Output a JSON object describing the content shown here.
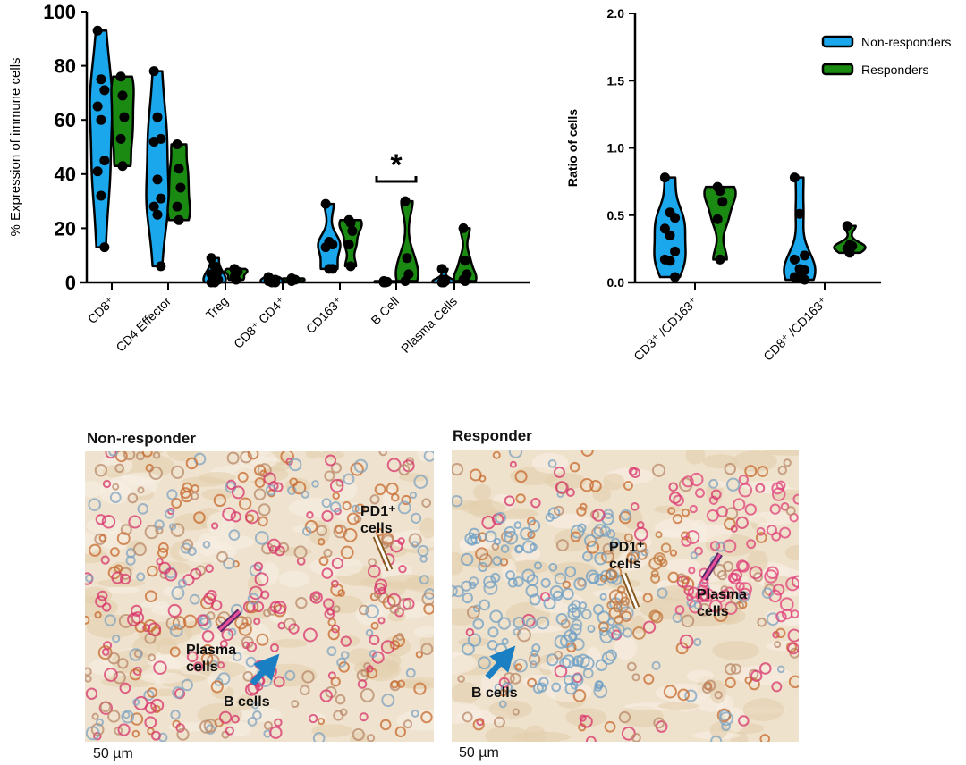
{
  "colors": {
    "non_responders": "#1aa7ec",
    "responders": "#1a8a12"
  },
  "chart_data": [
    {
      "type": "violin",
      "ylabel": "% Expression of immune cells",
      "ylim": [
        0,
        100
      ],
      "yticks": [
        "0",
        "20",
        "40",
        "60",
        "80",
        "100"
      ],
      "categories": [
        "CD8⁺",
        "CD4 Effector",
        "Treg",
        "CD8⁺ CD4⁺",
        "CD163⁺",
        "B Cell",
        "Plasma Cells"
      ],
      "series": [
        {
          "name": "Non-responders",
          "values": [
            [
              93,
              75,
              71,
              65,
              60,
              45,
              41,
              32,
              13
            ],
            [
              78,
              61,
              53,
              52,
              38,
              31,
              28,
              25,
              6
            ],
            [
              9,
              6,
              4,
              3,
              2,
              1,
              0,
              0
            ],
            [
              2,
              1,
              1,
              0.5,
              0,
              0
            ],
            [
              29,
              15,
              14,
              13,
              5,
              5
            ],
            [
              0.5,
              0.3,
              0.2,
              0,
              0
            ],
            [
              5,
              1,
              0.5,
              0,
              0
            ]
          ]
        },
        {
          "name": "Responders",
          "values": [
            [
              76,
              69,
              61,
              53,
              43
            ],
            [
              51,
              42,
              35,
              28,
              23
            ],
            [
              5,
              4,
              4,
              2,
              1
            ],
            [
              1.5,
              1,
              1,
              0.5
            ],
            [
              23,
              22,
              19,
              14,
              6
            ],
            [
              30,
              9,
              3,
              0.5
            ],
            [
              20,
              8,
              3,
              1,
              0.5
            ]
          ]
        }
      ],
      "annotations": [
        {
          "category": "B Cell",
          "text": "*"
        }
      ]
    },
    {
      "type": "violin",
      "ylabel": "Ratio of  cells",
      "ylim": [
        0,
        2
      ],
      "yticks": [
        "0.0",
        "0.5",
        "1.0",
        "1.5",
        "2.0"
      ],
      "categories": [
        "CD3⁺ /CD163⁺",
        "CD8⁺ /CD163⁺"
      ],
      "series": [
        {
          "name": "Non-responders",
          "values": [
            [
              0.78,
              0.52,
              0.48,
              0.4,
              0.35,
              0.23,
              0.17,
              0.16,
              0.04
            ],
            [
              0.78,
              0.51,
              0.2,
              0.17,
              0.1,
              0.09,
              0.04,
              0.03,
              0.02
            ]
          ]
        },
        {
          "name": "Responders",
          "values": [
            [
              0.71,
              0.68,
              0.6,
              0.47,
              0.17
            ],
            [
              0.42,
              0.28,
              0.27,
              0.25,
              0.22
            ]
          ]
        }
      ],
      "legend": {
        "position": "top-right",
        "entries": [
          "Non-responders",
          "Responders"
        ]
      }
    }
  ],
  "panels": [
    {
      "title": "Non-responder",
      "scale": "50 µm",
      "labels": {
        "pd1": "PD1⁺\ncells",
        "plasma": "Plasma\ncells",
        "bcells": "B cells"
      }
    },
    {
      "title": "Responder",
      "scale": "50 µm",
      "labels": {
        "pd1": "PD1⁺\ncells",
        "plasma": "Plasma\ncells",
        "bcells": "B cells"
      }
    }
  ]
}
